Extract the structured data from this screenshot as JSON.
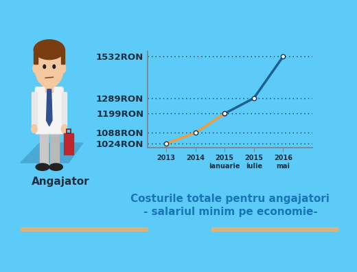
{
  "chart_data": {
    "type": "line",
    "title": "Costurile totale pentru angajatori\n- salariul minim pe economie-",
    "annotations": [
      "Angajator"
    ],
    "categories": [
      "2013",
      "2014",
      "2015\nianuarie",
      "2015\niulie",
      "2016\nmai"
    ],
    "series": [
      {
        "color": "#f39a3b",
        "values": [
          1024,
          1088,
          1199,
          null,
          null
        ]
      },
      {
        "color": "#1d5f8f",
        "values": [
          null,
          null,
          1199,
          1289,
          1532
        ]
      }
    ],
    "ylim": [
      1000,
      1560
    ],
    "yticks": [
      {
        "value": 1024,
        "label": "1024RON"
      },
      {
        "value": 1088,
        "label": "1088RON"
      },
      {
        "value": 1199,
        "label": "1199RON"
      },
      {
        "value": 1289,
        "label": "1289RON"
      },
      {
        "value": 1532,
        "label": "1532RON"
      }
    ],
    "grid": true,
    "marker": "o"
  }
}
